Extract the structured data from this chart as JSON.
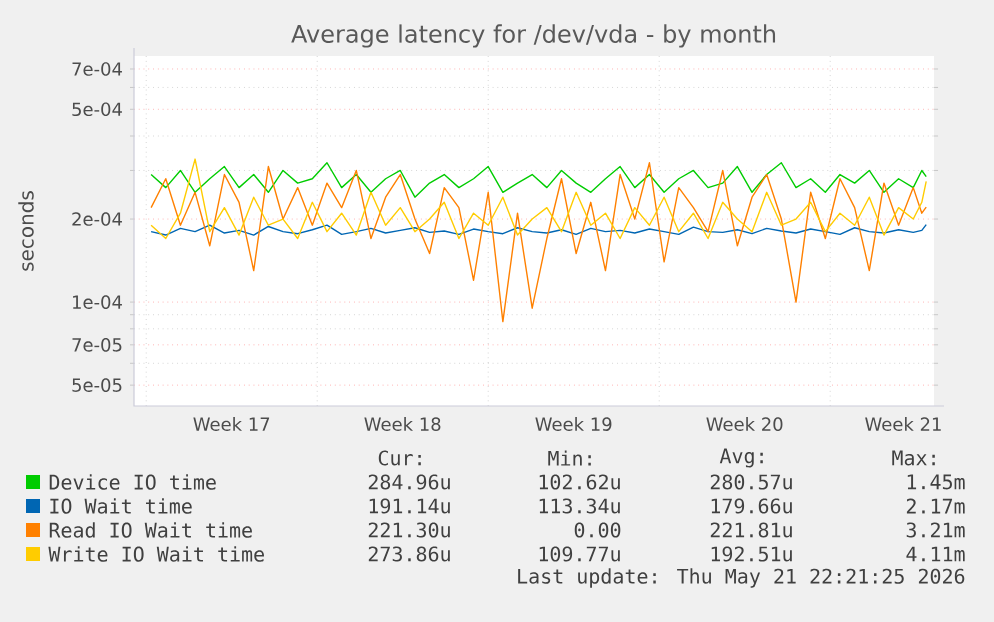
{
  "chart_data": {
    "type": "line",
    "title": "Average latency for /dev/vda - by month",
    "ylabel": "seconds",
    "log": "y",
    "grid": true,
    "legend": "bottom",
    "xlim": [
      "2026-04-19T12:00",
      "2026-05-22T06:00"
    ],
    "xticks": [
      {
        "value": "2026-04-23T12:00",
        "label": "Week 17"
      },
      {
        "value": "2026-04-30T12:00",
        "label": "Week 18"
      },
      {
        "value": "2026-05-07T12:00",
        "label": "Week 19"
      },
      {
        "value": "2026-05-14T12:00",
        "label": "Week 20"
      },
      {
        "value": "2026-05-21T00:00",
        "label": "Week 21"
      },
      {
        "value": "2026-04-20",
        "label": null
      },
      {
        "value": "2026-04-27",
        "label": null
      },
      {
        "value": "2026-05-04",
        "label": null
      },
      {
        "value": "2026-05-11",
        "label": null
      },
      {
        "value": "2026-05-18",
        "label": null
      }
    ],
    "ylim": [
      4.2e-05,
      0.00078
    ],
    "yticks": [
      {
        "value": 5e-05,
        "label": "5e-05"
      },
      {
        "value": 7e-05,
        "label": "7e-05"
      },
      {
        "value": 0.0001,
        "label": "1e-04"
      },
      {
        "value": 0.0002,
        "label": "2e-04"
      },
      {
        "value": 0.0005,
        "label": "5e-04"
      },
      {
        "value": 0.0007,
        "label": "7e-04"
      },
      {
        "value": 6e-05,
        "label": null
      },
      {
        "value": 8e-05,
        "label": null
      },
      {
        "value": 9e-05,
        "label": null
      },
      {
        "value": 0.0003,
        "label": null
      },
      {
        "value": 0.0004,
        "label": null
      },
      {
        "value": 0.0006,
        "label": null
      }
    ],
    "x": [
      "2026-04-20T04:48",
      "2026-04-20T19:12",
      "2026-04-21T09:36",
      "2026-04-22T00:00",
      "2026-04-22T14:24",
      "2026-04-23T04:48",
      "2026-04-23T19:12",
      "2026-04-24T09:36",
      "2026-04-25T00:00",
      "2026-04-25T14:24",
      "2026-04-26T04:48",
      "2026-04-26T19:12",
      "2026-04-27T09:36",
      "2026-04-28T00:00",
      "2026-04-28T14:24",
      "2026-04-29T04:48",
      "2026-04-29T19:12",
      "2026-04-30T09:36",
      "2026-05-01T00:00",
      "2026-05-01T14:24",
      "2026-05-02T04:48",
      "2026-05-02T19:12",
      "2026-05-03T09:36",
      "2026-05-04T00:00",
      "2026-05-04T14:24",
      "2026-05-05T04:48",
      "2026-05-05T19:12",
      "2026-05-06T09:36",
      "2026-05-07T00:00",
      "2026-05-07T14:24",
      "2026-05-08T04:48",
      "2026-05-08T19:12",
      "2026-05-09T09:36",
      "2026-05-10T00:00",
      "2026-05-10T14:24",
      "2026-05-11T04:48",
      "2026-05-11T19:12",
      "2026-05-12T09:36",
      "2026-05-13T00:00",
      "2026-05-13T14:24",
      "2026-05-14T04:48",
      "2026-05-14T19:12",
      "2026-05-15T09:36",
      "2026-05-16T00:00",
      "2026-05-16T14:24",
      "2026-05-17T04:48",
      "2026-05-17T19:12",
      "2026-05-18T09:36",
      "2026-05-19T00:00",
      "2026-05-19T14:24",
      "2026-05-20T04:48",
      "2026-05-20T19:12",
      "2026-05-21T09:36",
      "2026-05-21T18:00",
      "2026-05-21T22:20"
    ],
    "series": [
      {
        "name": "Device IO time",
        "color": "#00cc00",
        "values": [
          0.00029,
          0.00026,
          0.0003,
          0.00025,
          0.00028,
          0.00031,
          0.00026,
          0.00029,
          0.00025,
          0.0003,
          0.00027,
          0.00028,
          0.00032,
          0.00026,
          0.00029,
          0.00025,
          0.00028,
          0.0003,
          0.00024,
          0.00027,
          0.00029,
          0.00026,
          0.00028,
          0.00031,
          0.00025,
          0.00027,
          0.00029,
          0.00026,
          0.0003,
          0.00027,
          0.00025,
          0.00028,
          0.00031,
          0.00026,
          0.00029,
          0.00025,
          0.00028,
          0.0003,
          0.00026,
          0.00027,
          0.00031,
          0.00025,
          0.00029,
          0.00032,
          0.00026,
          0.00028,
          0.00025,
          0.00029,
          0.00027,
          0.0003,
          0.00025,
          0.00028,
          0.00026,
          0.0003,
          0.000285
        ]
      },
      {
        "name": "IO Wait time",
        "color": "#0066b3",
        "values": [
          0.00018,
          0.000175,
          0.000185,
          0.00018,
          0.00019,
          0.000178,
          0.000182,
          0.000175,
          0.000188,
          0.00018,
          0.000177,
          0.000183,
          0.00019,
          0.000176,
          0.00018,
          0.000185,
          0.000178,
          0.000182,
          0.000186,
          0.000179,
          0.000181,
          0.000176,
          0.000184,
          0.00018,
          0.000177,
          0.000186,
          0.00018,
          0.000178,
          0.000183,
          0.000176,
          0.000185,
          0.00018,
          0.000182,
          0.000178,
          0.000184,
          0.00018,
          0.000176,
          0.000187,
          0.00018,
          0.000179,
          0.000183,
          0.000177,
          0.000185,
          0.000181,
          0.000178,
          0.000184,
          0.00018,
          0.000176,
          0.000186,
          0.00018,
          0.000178,
          0.000183,
          0.000179,
          0.000182,
          0.000191
        ]
      },
      {
        "name": "Read IO Wait time",
        "color": "#ff8000",
        "values": [
          0.00022,
          0.00028,
          0.00019,
          0.00025,
          0.00016,
          0.00029,
          0.00023,
          0.00013,
          0.00031,
          0.0002,
          0.00026,
          0.00019,
          0.00027,
          0.00022,
          0.0003,
          0.00017,
          0.00024,
          0.00029,
          0.0002,
          0.00015,
          0.00026,
          0.00022,
          0.00012,
          0.00025,
          8.5e-05,
          0.00021,
          9.5e-05,
          0.00017,
          0.00028,
          0.00015,
          0.00023,
          0.00013,
          0.00029,
          0.0002,
          0.00032,
          0.00014,
          0.00026,
          0.00022,
          0.00018,
          0.0003,
          0.00016,
          0.00024,
          0.00029,
          0.0002,
          0.0001,
          0.00025,
          0.00017,
          0.00028,
          0.00022,
          0.00013,
          0.00027,
          0.00019,
          0.00026,
          0.00021,
          0.000221
        ]
      },
      {
        "name": "Write IO Wait time",
        "color": "#ffcc00",
        "values": [
          0.00019,
          0.00017,
          0.00021,
          0.00033,
          0.00018,
          0.00022,
          0.000175,
          0.00024,
          0.00019,
          0.0002,
          0.00017,
          0.00023,
          0.00018,
          0.00021,
          0.000175,
          0.00025,
          0.00019,
          0.00022,
          0.00018,
          0.0002,
          0.00023,
          0.00017,
          0.00021,
          0.00019,
          0.00024,
          0.000175,
          0.0002,
          0.00022,
          0.00018,
          0.00025,
          0.00019,
          0.00021,
          0.00017,
          0.00022,
          0.00019,
          0.00024,
          0.00018,
          0.00021,
          0.00017,
          0.00023,
          0.0002,
          0.00018,
          0.00025,
          0.00019,
          0.0002,
          0.00023,
          0.00018,
          0.00021,
          0.00019,
          0.00024,
          0.000175,
          0.00022,
          0.0002,
          0.00023,
          0.000274
        ]
      }
    ],
    "annotations": [
      "Cur:",
      "Min:",
      "Avg:",
      "Max:",
      "284.96u",
      "102.62u",
      "280.57u",
      "1.45m",
      "191.14u",
      "113.34u",
      "179.66u",
      "2.17m",
      "221.30u",
      "0.00",
      "221.81u",
      "3.21m",
      "273.86u",
      "109.77u",
      "192.51u",
      "4.11m",
      "Last update: Thu May 21 22:21:25 2026"
    ]
  }
}
